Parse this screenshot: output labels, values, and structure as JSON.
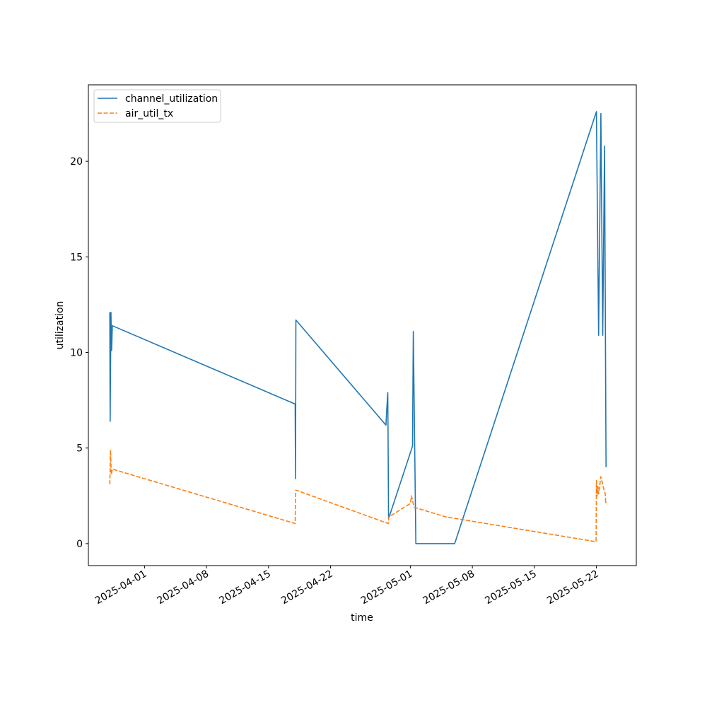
{
  "chart_data": {
    "type": "line",
    "xlabel": "time",
    "ylabel": "utilization",
    "legend_position": "top-left",
    "grid": false,
    "xlim": [
      "2025-03-25 16:00",
      "2025-05-26 12:00"
    ],
    "ylim": [
      -1.15,
      24.0
    ],
    "x_ticks": [
      "2025-04-01",
      "2025-04-08",
      "2025-04-15",
      "2025-04-22",
      "2025-05-01",
      "2025-05-08",
      "2025-05-15",
      "2025-05-22"
    ],
    "y_ticks": [
      0,
      5,
      10,
      15,
      20
    ],
    "series": [
      {
        "name": "channel_utilization",
        "color": "#1f77b4",
        "style": "solid",
        "points": [
          {
            "x": "2025-03-28 02:00",
            "y": 12.1
          },
          {
            "x": "2025-03-28 03:00",
            "y": 6.4
          },
          {
            "x": "2025-03-28 05:00",
            "y": 12.1
          },
          {
            "x": "2025-03-28 07:00",
            "y": 10.1
          },
          {
            "x": "2025-03-28 09:00",
            "y": 11.4
          },
          {
            "x": "2025-04-18 00:00",
            "y": 7.3
          },
          {
            "x": "2025-04-18 01:00",
            "y": 3.4
          },
          {
            "x": "2025-04-18 02:00",
            "y": 11.7
          },
          {
            "x": "2025-04-28 06:00",
            "y": 6.2
          },
          {
            "x": "2025-04-28 08:00",
            "y": 7.0
          },
          {
            "x": "2025-04-28 11:00",
            "y": 7.9
          },
          {
            "x": "2025-04-28 13:00",
            "y": 1.3
          },
          {
            "x": "2025-05-01 06:00",
            "y": 5.1
          },
          {
            "x": "2025-05-01 08:00",
            "y": 11.1
          },
          {
            "x": "2025-05-01 15:00",
            "y": 0.0
          },
          {
            "x": "2025-05-06 00:00",
            "y": 0.0
          },
          {
            "x": "2025-05-22 00:00",
            "y": 22.6
          },
          {
            "x": "2025-05-22 02:00",
            "y": 18.8
          },
          {
            "x": "2025-05-22 06:00",
            "y": 10.9
          },
          {
            "x": "2025-05-22 12:00",
            "y": 22.5
          },
          {
            "x": "2025-05-22 17:00",
            "y": 10.9
          },
          {
            "x": "2025-05-22 22:00",
            "y": 20.8
          },
          {
            "x": "2025-05-23 00:00",
            "y": 12.8
          },
          {
            "x": "2025-05-23 02:00",
            "y": 4.0
          }
        ]
      },
      {
        "name": "air_util_tx",
        "color": "#ff7f0e",
        "style": "dashed",
        "points": [
          {
            "x": "2025-03-28 02:00",
            "y": 3.1
          },
          {
            "x": "2025-03-28 04:00",
            "y": 4.9
          },
          {
            "x": "2025-03-28 06:00",
            "y": 3.6
          },
          {
            "x": "2025-03-28 09:00",
            "y": 3.9
          },
          {
            "x": "2025-04-18 00:00",
            "y": 1.05
          },
          {
            "x": "2025-04-18 01:00",
            "y": 2.4
          },
          {
            "x": "2025-04-18 02:00",
            "y": 2.8
          },
          {
            "x": "2025-04-28 12:00",
            "y": 1.05
          },
          {
            "x": "2025-04-28 14:00",
            "y": 1.4
          },
          {
            "x": "2025-05-01 00:00",
            "y": 2.1
          },
          {
            "x": "2025-05-01 03:00",
            "y": 2.5
          },
          {
            "x": "2025-05-01 10:00",
            "y": 1.9
          },
          {
            "x": "2025-05-05 00:00",
            "y": 1.4
          },
          {
            "x": "2025-05-21 23:00",
            "y": 0.1
          },
          {
            "x": "2025-05-22 00:00",
            "y": 3.3
          },
          {
            "x": "2025-05-22 02:00",
            "y": 2.5
          },
          {
            "x": "2025-05-22 04:00",
            "y": 3.0
          },
          {
            "x": "2025-05-22 06:00",
            "y": 2.6
          },
          {
            "x": "2025-05-22 12:00",
            "y": 3.5
          },
          {
            "x": "2025-05-22 18:00",
            "y": 3.0
          },
          {
            "x": "2025-05-23 00:00",
            "y": 2.6
          },
          {
            "x": "2025-05-23 01:00",
            "y": 2.1
          },
          {
            "x": "2025-05-23 02:00",
            "y": 2.2
          }
        ]
      }
    ]
  }
}
